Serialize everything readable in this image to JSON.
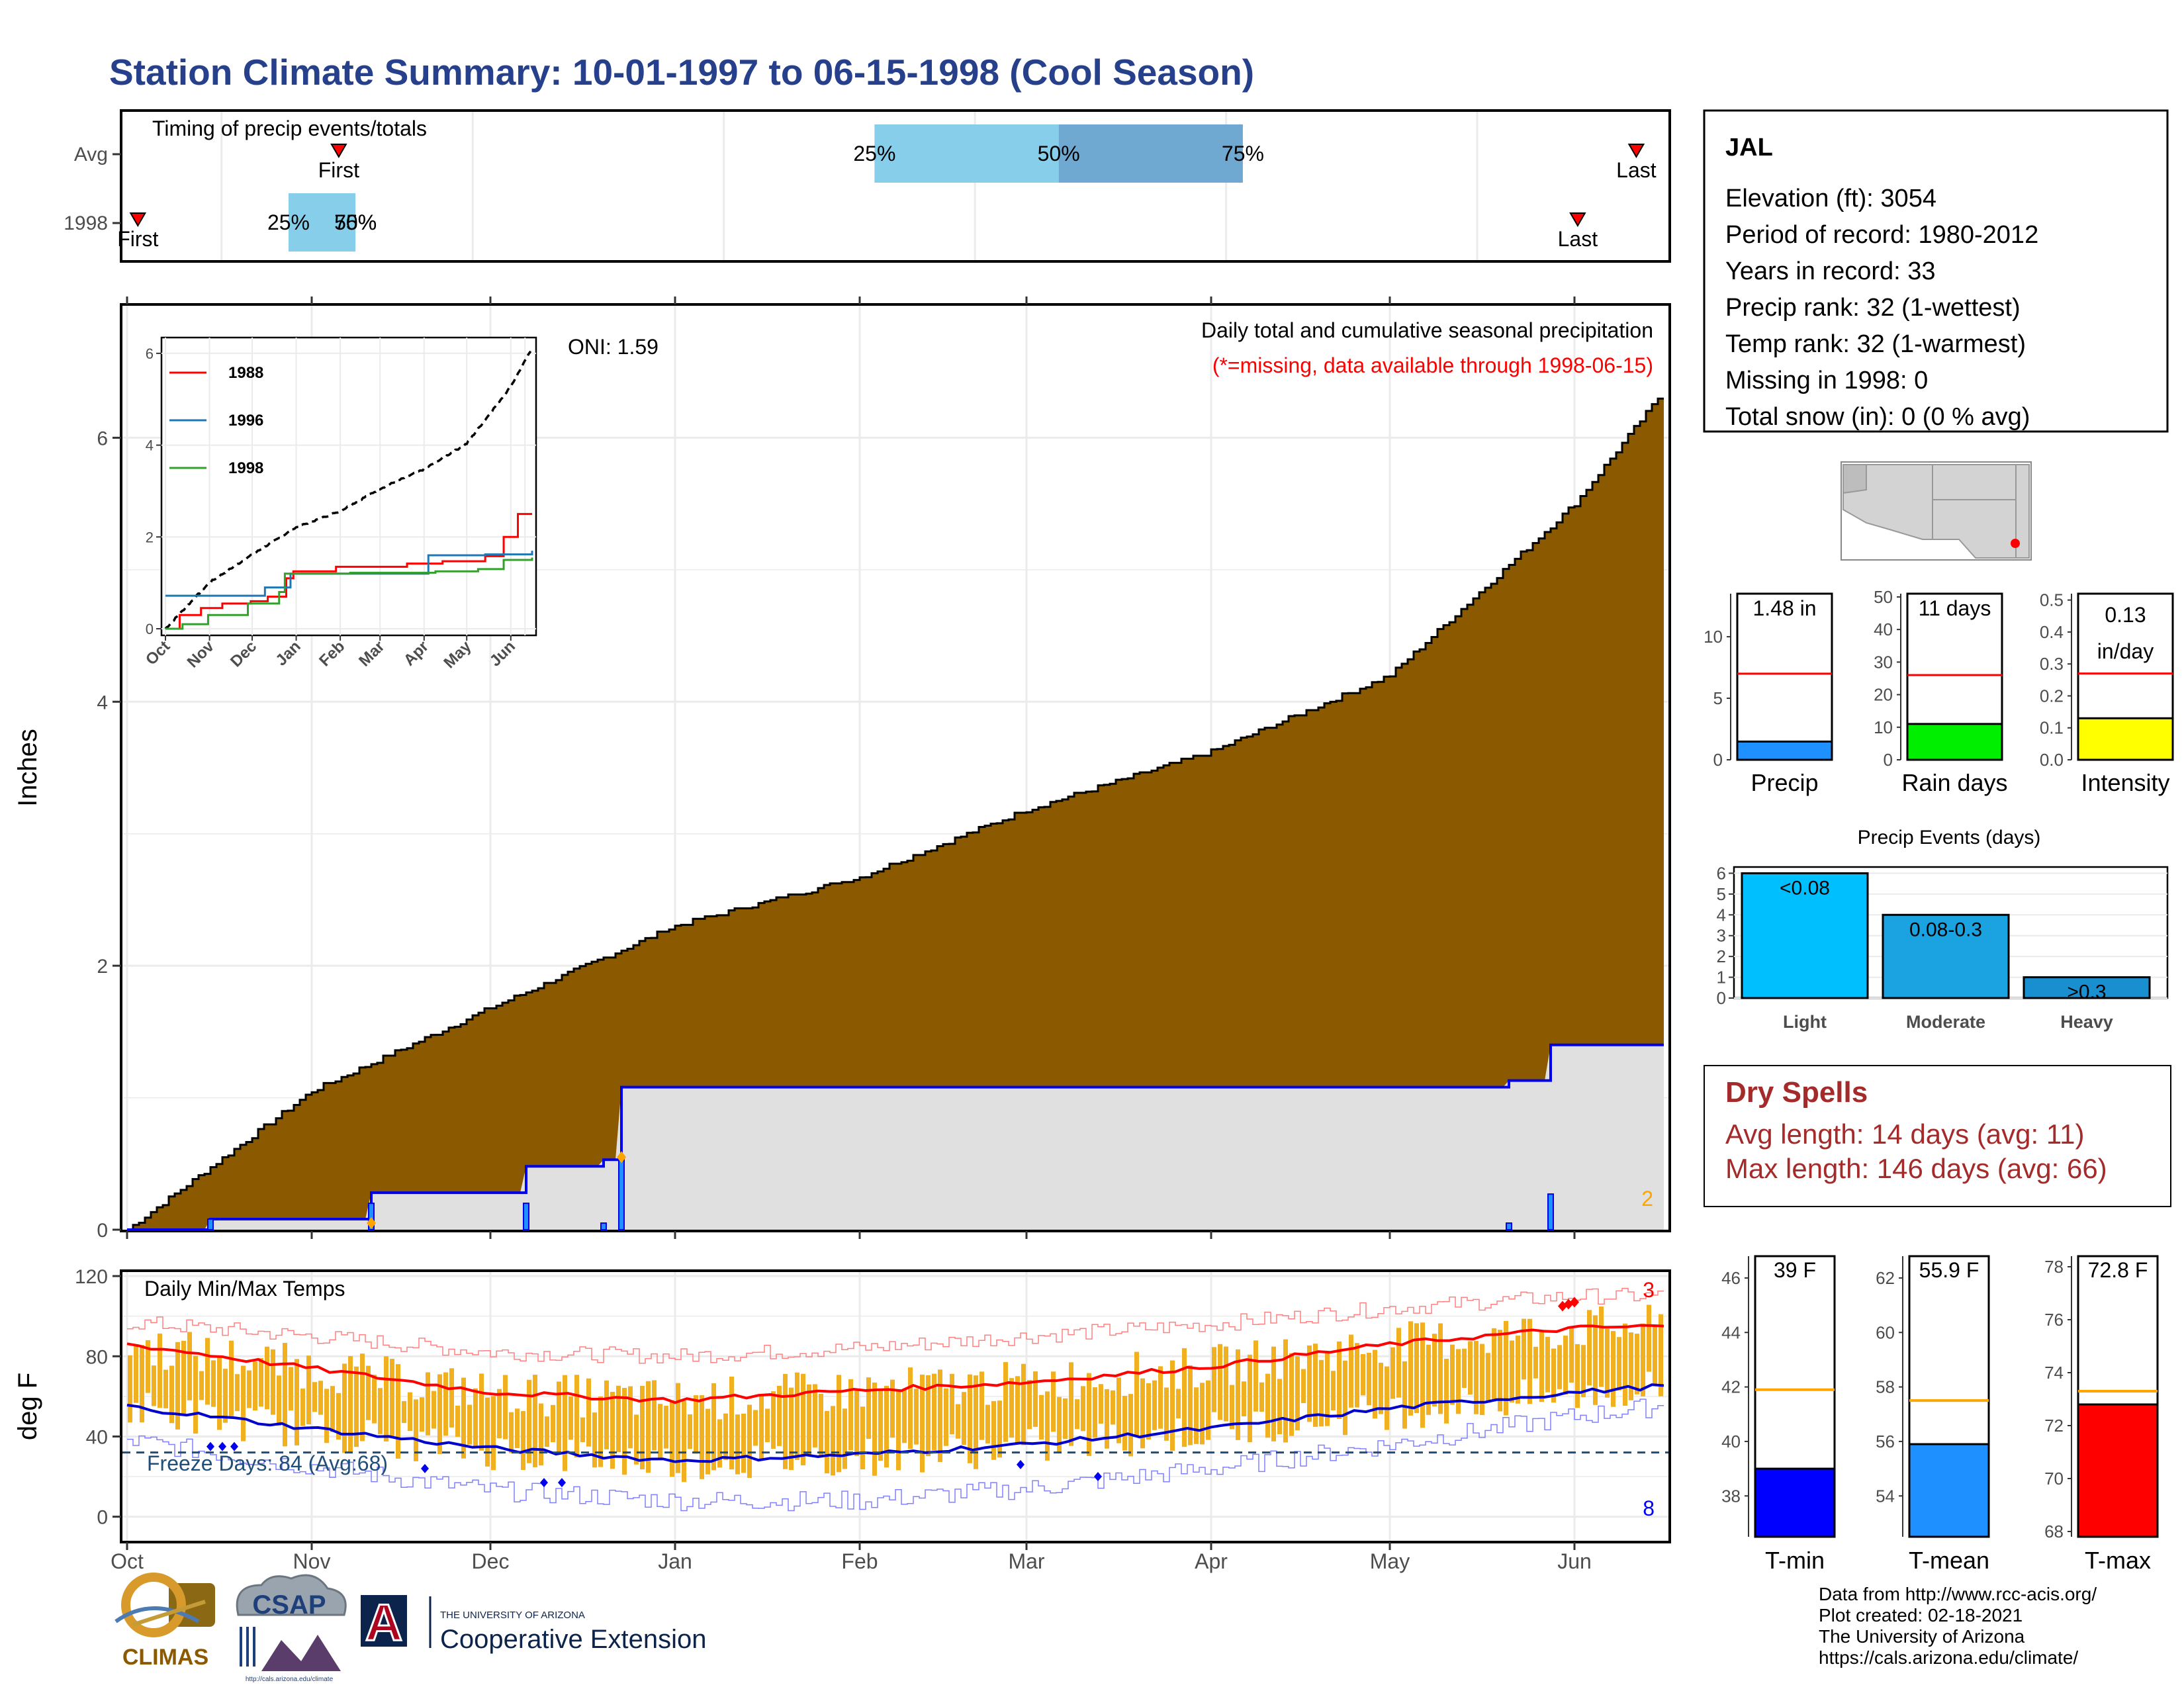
{
  "page": {
    "title": "Station Climate Summary: 10-01-1997 to 06-15-1998 (Cool Season)",
    "colors": {
      "title": "#27408b",
      "brown": "#8b5a00",
      "grey_fill": "#e0e0e0",
      "blue": "#0000ee",
      "red": "#ff0000",
      "orange": "#f0b020",
      "dry_spell": "#a52a2a"
    }
  },
  "timing": {
    "title": "Timing of precip events/totals",
    "rows": [
      {
        "label": "Avg",
        "first_label": "First",
        "last_label": "Last",
        "first_day": 84,
        "last_day": 239,
        "q25_label": "25%",
        "q50_label": "50%",
        "q75_label": "75%",
        "q25_day": 148,
        "q50_day": 170,
        "q75_day": 192
      },
      {
        "label": "1998",
        "first_label": "First",
        "last_label": "Last",
        "first_day": 60,
        "last_day": 232,
        "q25_label": "25%",
        "q50_label": "50%",
        "q75_label": "75%",
        "q25_day": 78,
        "q50_day": 86,
        "q75_day": 86
      }
    ],
    "x_range": [
      58,
      243
    ]
  },
  "precip": {
    "ylabel": "Inches",
    "title": "Daily total and cumulative seasonal precipitation",
    "subtitle": "(*=missing, data available through 1998-06-15)",
    "oni": "ONI: 1.59",
    "count_label": "2",
    "yticks": [
      "0",
      "2",
      "4",
      "6"
    ],
    "ylim": [
      0,
      7.0
    ]
  },
  "inset": {
    "yticks": [
      "0",
      "2",
      "4",
      "6"
    ],
    "xticks": [
      "Oct",
      "Nov",
      "Dec",
      "Jan",
      "Feb",
      "Mar",
      "Apr",
      "May",
      "Jun"
    ],
    "legend": [
      "1988",
      "1996",
      "1998"
    ],
    "legend_colors": [
      "#ff0000",
      "#1f78b4",
      "#33a02c"
    ]
  },
  "temps": {
    "ylabel": "deg F",
    "title": "Daily Min/Max Temps",
    "freeze_label": "Freeze Days: 84 (Avg:68)",
    "count_high": "3",
    "count_low": "8",
    "yticks": [
      "0",
      "40",
      "80",
      "120"
    ],
    "ylim": [
      -12,
      122
    ],
    "xticks": [
      "Oct",
      "Nov",
      "Dec",
      "Jan",
      "Feb",
      "Mar",
      "Apr",
      "May",
      "Jun"
    ]
  },
  "station": {
    "name": "JAL",
    "lines": [
      "Elevation (ft): 3054",
      "Period of record: 1980-2012",
      "Years in record: 33",
      "Precip rank: 32 (1-wettest)",
      "Temp rank: 32 (1-warmest)",
      "Missing in 1998: 0",
      "Total snow (in): 0 (0 % avg)"
    ]
  },
  "mini_bars": [
    {
      "label": "Precip",
      "value_text": "1.48 in",
      "value": 1.48,
      "avg": 7.0,
      "max": 13.5,
      "yticks": [
        "0",
        "5",
        "10"
      ],
      "color": "#1e90ff"
    },
    {
      "label": "Rain days",
      "value_text": "11 days",
      "value": 11,
      "avg": 26,
      "max": 51,
      "yticks": [
        "0",
        "10",
        "20",
        "30",
        "40",
        "50"
      ],
      "color": "#00ee00"
    },
    {
      "label": "Intensity",
      "value_text1": "0.13",
      "value_text2": "in/day",
      "value": 0.13,
      "avg": 0.27,
      "max": 0.52,
      "yticks": [
        "0.0",
        "0.1",
        "0.2",
        "0.3",
        "0.4",
        "0.5"
      ],
      "color": "#ffff00"
    }
  ],
  "precip_events": {
    "title": "Precip Events (days)",
    "categories": [
      "Light",
      "Moderate",
      "Heavy"
    ],
    "bar_labels": [
      "<0.08",
      "0.08-0.3",
      ">0.3"
    ],
    "values": [
      6,
      4,
      1
    ],
    "yticks": [
      "0",
      "1",
      "2",
      "3",
      "4",
      "5",
      "6"
    ]
  },
  "dry_spells": {
    "title": "Dry Spells",
    "avg_line": "Avg length: 14 days (avg: 11)",
    "max_line": "Max length: 146 days (avg: 66)"
  },
  "temp_bars": [
    {
      "label": "T-min",
      "value_text": "39 F",
      "value": 39,
      "avg": 41.9,
      "min": 36.5,
      "max": 46.8,
      "yticks": [
        "38",
        "40",
        "42",
        "44",
        "46"
      ],
      "color": "#0000ff"
    },
    {
      "label": "T-mean",
      "value_text": "55.9 F",
      "value": 55.9,
      "avg": 57.5,
      "min": 52.5,
      "max": 62.8,
      "yticks": [
        "54",
        "56",
        "58",
        "60",
        "62"
      ],
      "color": "#1e90ff"
    },
    {
      "label": "T-max",
      "value_text": "72.8 F",
      "value": 72.8,
      "avg": 73.3,
      "min": 67.8,
      "max": 78.4,
      "yticks": [
        "68",
        "70",
        "72",
        "74",
        "76",
        "78"
      ],
      "color": "#ff0000"
    }
  ],
  "credits": [
    "Data from http://www.rcc-acis.org/",
    "Plot created: 02-18-2021",
    "The University of Arizona",
    "https://cals.arizona.edu/climate/"
  ],
  "logos": {
    "climas": "CLIMAS",
    "csap": "CSAP",
    "csap_url": "http://cals.arizona.edu/climate",
    "ua_line1": "THE UNIVERSITY OF ARIZONA",
    "ua_line2": "Cooperative Extension",
    "ua_letter": "A"
  },
  "chart_data": [
    {
      "type": "area",
      "title": "Daily total and cumulative seasonal precipitation",
      "ylabel": "Inches",
      "ylim": [
        0,
        7.0
      ],
      "x": [
        "1997-10-01",
        "1997-11-01",
        "1997-12-01",
        "1998-01-01",
        "1998-02-01",
        "1998-03-01",
        "1998-04-01",
        "1998-05-01",
        "1998-06-01",
        "1998-06-15"
      ],
      "series": [
        {
          "name": "Avg cumulative",
          "values": [
            0.0,
            1.05,
            1.68,
            2.3,
            2.67,
            3.18,
            3.62,
            4.2,
            5.5,
            6.3
          ]
        },
        {
          "name": "1998 cumulative",
          "values": [
            0.0,
            0.18,
            0.38,
            1.18,
            1.18,
            1.18,
            1.18,
            1.18,
            1.48,
            1.48
          ]
        }
      ],
      "daily_events": [
        {
          "date": "1997-10-15",
          "value": 0.08
        },
        {
          "date": "1997-11-11",
          "value": 0.2
        },
        {
          "date": "1997-12-07",
          "value": 0.2
        },
        {
          "date": "1997-12-20",
          "value": 0.05
        },
        {
          "date": "1997-12-23",
          "value": 0.55
        },
        {
          "date": "1998-05-21",
          "value": 0.05
        },
        {
          "date": "1998-05-28",
          "value": 0.27
        }
      ]
    },
    {
      "type": "line",
      "title": "Daily Min/Max Temps",
      "ylabel": "deg F",
      "ylim": [
        -12,
        122
      ],
      "x": [
        "1997-10-01",
        "1997-11-01",
        "1997-12-01",
        "1998-01-01",
        "1998-02-01",
        "1998-03-01",
        "1998-04-01",
        "1998-05-01",
        "1998-06-01",
        "1998-06-15"
      ],
      "series": [
        {
          "name": "Avg max",
          "values": [
            86,
            74,
            62,
            58,
            63,
            67,
            75,
            86,
            94,
            95
          ]
        },
        {
          "name": "Avg min",
          "values": [
            55,
            44,
            34,
            28,
            31,
            36,
            44,
            54,
            62,
            65
          ]
        },
        {
          "name": "Record max",
          "values": [
            97,
            90,
            82,
            80,
            84,
            90,
            96,
            104,
            110,
            110
          ]
        },
        {
          "name": "Record min",
          "values": [
            38,
            25,
            13,
            8,
            8,
            14,
            24,
            36,
            50,
            55
          ]
        }
      ],
      "freeze_line": 32
    }
  ]
}
